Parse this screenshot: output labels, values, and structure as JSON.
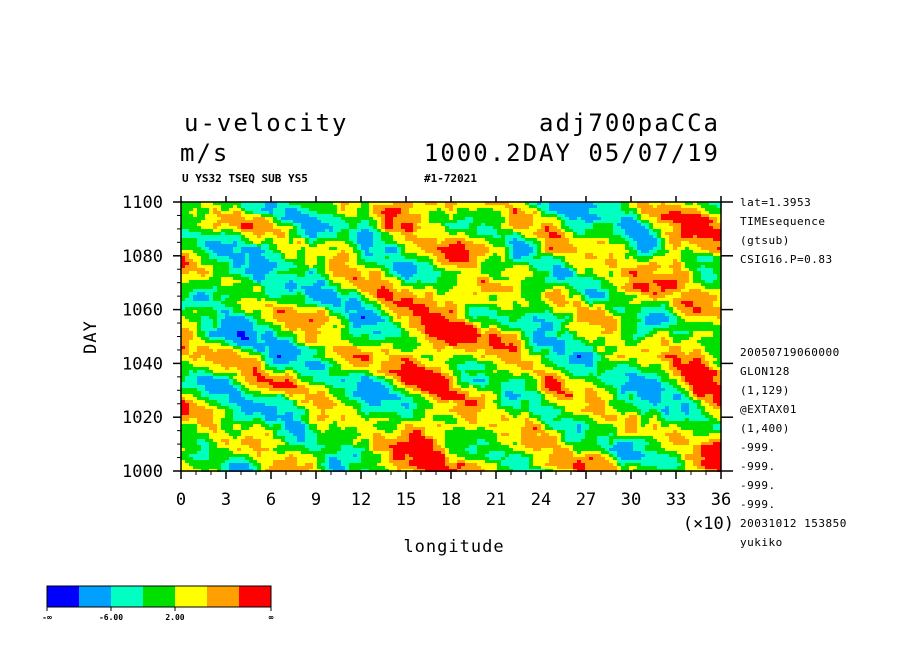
{
  "header": {
    "variable": "u-velocity",
    "units": "m/s",
    "experiment": "adj700paCCa",
    "time_info": "1000.2DAY 05/07/19",
    "sub_left": "U YS32 TSEQ SUB YS5",
    "sub_right": "#1-72021"
  },
  "right_notes": {
    "top": [
      "lat=1.3953",
      "TIMEsequence",
      "(gtsub)",
      "CSIG16.P=0.83"
    ],
    "bottom": [
      "20050719060000",
      "GLON128",
      "(1,129)",
      "@EXTAX01",
      "(1,400)",
      "-999.",
      "-999.",
      "-999.",
      "-999.",
      "20031012 153850",
      "yukiko"
    ]
  },
  "chart_data": {
    "type": "heatmap",
    "xlabel": "longitude",
    "ylabel": "DAY",
    "x_multiplier_label": "(×10)",
    "x_ticks": [
      "0",
      "3",
      "6",
      "9",
      "12",
      "15",
      "18",
      "21",
      "24",
      "27",
      "30",
      "33",
      "36"
    ],
    "y_ticks": [
      "1000",
      "1020",
      "1040",
      "1060",
      "1080",
      "1100"
    ],
    "xlim": [
      0,
      360
    ],
    "ylim": [
      1000,
      1100
    ],
    "colorbar": {
      "colors": [
        "#0000ff",
        "#00a0ff",
        "#00ffc0",
        "#00e000",
        "#ffff00",
        "#ffa000",
        "#ff0000"
      ],
      "labels": [
        "-∞",
        "-6.00",
        "2.00",
        "∞"
      ]
    }
  },
  "colors": {
    "blue": "#0000ff",
    "sky": "#00a0ff",
    "aqua": "#00ffc0",
    "green": "#00e000",
    "yellow": "#ffff00",
    "orange": "#ffa000",
    "red": "#ff0000"
  }
}
